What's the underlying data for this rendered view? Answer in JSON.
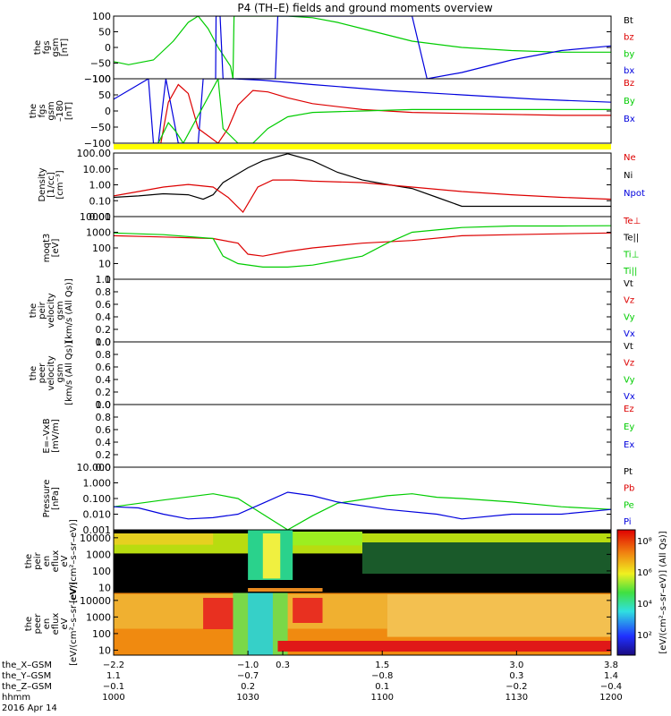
{
  "title": "P4 (TH–E) fields and ground moments overview",
  "footer": {
    "date": "2016 Apr 14",
    "rows": [
      {
        "name": "the_X–GSM",
        "values": [
          "−2.2",
          "−1.0",
          "0.3",
          "1.5",
          "3.0",
          "3.8"
        ]
      },
      {
        "name": "the_Y–GSM",
        "values": [
          "1.1",
          "−0.7",
          "",
          "−0.8",
          "0.3",
          "1.4"
        ]
      },
      {
        "name": "the_Z–GSM",
        "values": [
          "−0.1",
          "0.2",
          "",
          "0.1",
          "−0.2",
          "−0.4"
        ]
      },
      {
        "name": "hhmm",
        "values": [
          "1000",
          "1030",
          "",
          "1100",
          "1130",
          "1200"
        ]
      }
    ]
  },
  "colorbar": {
    "ticks": [
      "10⁸",
      "10⁶",
      "10⁴",
      "10²"
    ],
    "label": "[eV/(cm²–s–sr–eV)] (All Qs)]"
  },
  "chart_data": [
    {
      "type": "line",
      "ylabel_lines": [
        "the",
        "fgs",
        "gsm",
        "[nT]"
      ],
      "y_ticks": [
        "100",
        "50",
        "0",
        "−50",
        "−100"
      ],
      "ylim": [
        -100,
        100
      ],
      "legend": [
        {
          "name": "Bt",
          "color": "#000000"
        },
        {
          "name": "bz",
          "color": "#dd0000"
        },
        {
          "name": "by",
          "color": "#00cc00"
        },
        {
          "name": "bx",
          "color": "#0000dd"
        }
      ],
      "series": [
        {
          "name": "by",
          "color": "#00cc00",
          "x": [
            0,
            3,
            8,
            12,
            15,
            17,
            19,
            21,
            23.5,
            24,
            24.2,
            30,
            35,
            40,
            45,
            50,
            55,
            60,
            70,
            80,
            90,
            100
          ],
          "y": [
            -45,
            -55,
            -40,
            20,
            80,
            100,
            60,
            0,
            -60,
            -100,
            100,
            100,
            100,
            95,
            80,
            60,
            40,
            20,
            0,
            -10,
            -15,
            -15
          ]
        },
        {
          "name": "bx",
          "color": "#0000dd",
          "x": [
            20.5,
            20.6,
            21.4,
            22,
            30,
            32.5,
            33,
            45,
            60,
            63,
            70,
            80,
            90,
            100
          ],
          "y": [
            -100,
            100,
            100,
            -100,
            -100,
            -100,
            100,
            100,
            100,
            -100,
            -80,
            -40,
            -10,
            5
          ]
        }
      ]
    },
    {
      "type": "line",
      "ylabel_lines": [
        "the",
        "fgs",
        "gsm",
        "–180",
        "[nT]"
      ],
      "y_ticks": [
        "100",
        "50",
        "0",
        "−50",
        "−100"
      ],
      "ylim": [
        -110,
        110
      ],
      "legend": [
        {
          "name": "Bz",
          "color": "#dd0000"
        },
        {
          "name": "By",
          "color": "#00cc00"
        },
        {
          "name": "Bx",
          "color": "#0000dd"
        }
      ],
      "band_color": "#ffff00",
      "series": [
        {
          "name": "Bx",
          "color": "#0000dd",
          "x": [
            0,
            7,
            8,
            9,
            10.5,
            13,
            17,
            18,
            24,
            30,
            40,
            55,
            70,
            85,
            100
          ],
          "y": [
            40,
            110,
            -110,
            -110,
            110,
            -110,
            -110,
            110,
            110,
            105,
            90,
            70,
            55,
            40,
            30
          ]
        },
        {
          "name": "Bz",
          "color": "#dd0000",
          "x": [
            9.5,
            11,
            13,
            15,
            17,
            21,
            23,
            25,
            28,
            31,
            35,
            40,
            50,
            60,
            75,
            90,
            100
          ],
          "y": [
            -110,
            30,
            90,
            60,
            -60,
            -110,
            -60,
            20,
            70,
            65,
            45,
            25,
            5,
            -5,
            -10,
            -15,
            -15
          ]
        },
        {
          "name": "By",
          "color": "#00cc00",
          "x": [
            9,
            11,
            12.5,
            14,
            21,
            22,
            25,
            28,
            31,
            35,
            40,
            50,
            60,
            75,
            90,
            100
          ],
          "y": [
            -110,
            -40,
            -70,
            -110,
            110,
            -60,
            -110,
            -110,
            -60,
            -20,
            -5,
            0,
            5,
            5,
            5,
            5
          ]
        }
      ]
    },
    {
      "type": "line",
      "ylabel_lines": [
        "Density",
        "[1/cc]",
        "[cm⁻³]"
      ],
      "y_ticks": [
        "100.00",
        "10.00",
        "1.00",
        "0.10",
        "0.01"
      ],
      "y_log": true,
      "ylim": [
        0.01,
        200
      ],
      "legend": [
        {
          "name": "Ne",
          "color": "#dd0000"
        },
        {
          "name": "Ni",
          "color": "#000000"
        },
        {
          "name": "Npot",
          "color": "#0000dd"
        }
      ],
      "series": [
        {
          "name": "Ni",
          "color": "#000000",
          "x": [
            0,
            5,
            10,
            15,
            18,
            20,
            22,
            27,
            30,
            35,
            40,
            45,
            50,
            55,
            60,
            65,
            70,
            80,
            90,
            100
          ],
          "y": [
            0.2,
            0.25,
            0.35,
            0.3,
            0.15,
            0.3,
            2,
            20,
            60,
            180,
            60,
            10,
            3,
            1.5,
            0.8,
            0.2,
            0.05,
            0.05,
            0.05,
            0.05
          ]
        },
        {
          "name": "Ne",
          "color": "#dd0000",
          "x": [
            0,
            5,
            10,
            15,
            20,
            23,
            26,
            29,
            32,
            36,
            40,
            50,
            60,
            70,
            80,
            90,
            100
          ],
          "y": [
            0.25,
            0.5,
            1,
            1.5,
            1,
            0.2,
            0.02,
            1,
            3,
            3,
            2.5,
            2,
            1,
            0.5,
            0.3,
            0.2,
            0.15
          ]
        }
      ]
    },
    {
      "type": "line",
      "ylabel_lines": [
        "moqt3",
        "[eV]"
      ],
      "y_ticks": [
        "10000",
        "1000",
        "100",
        "10",
        "1"
      ],
      "y_log": true,
      "ylim": [
        1,
        10000
      ],
      "legend": [
        {
          "name": "Te⊥",
          "color": "#dd0000"
        },
        {
          "name": "Te||",
          "color": "#000000"
        },
        {
          "name": "Ti⊥",
          "color": "#00cc00"
        },
        {
          "name": "Ti||",
          "color": "#00cc00"
        }
      ],
      "series": [
        {
          "name": "Te⊥",
          "color": "#dd0000",
          "x": [
            0,
            10,
            20,
            25,
            27,
            30,
            35,
            40,
            50,
            60,
            70,
            80,
            90,
            100
          ],
          "y": [
            600,
            500,
            400,
            200,
            40,
            30,
            60,
            100,
            200,
            300,
            600,
            700,
            800,
            900
          ]
        },
        {
          "name": "Ti⊥",
          "color": "#00cc00",
          "x": [
            0,
            10,
            20,
            22,
            25,
            30,
            35,
            40,
            50,
            55,
            60,
            70,
            80,
            90,
            100
          ],
          "y": [
            900,
            700,
            400,
            30,
            10,
            6,
            6,
            8,
            30,
            200,
            1000,
            2000,
            2500,
            2500,
            2600
          ]
        }
      ]
    },
    {
      "type": "line",
      "ylabel_lines": [
        "the",
        "peir",
        "velocity",
        "gsm",
        "[km/s (All Qs)]"
      ],
      "y_ticks": [
        "1.0",
        "0.8",
        "0.6",
        "0.4",
        "0.2",
        "0.0"
      ],
      "ylim": [
        0,
        1
      ],
      "legend": [
        {
          "name": "Vt",
          "color": "#000000"
        },
        {
          "name": "Vz",
          "color": "#dd0000"
        },
        {
          "name": "Vy",
          "color": "#00cc00"
        },
        {
          "name": "Vx",
          "color": "#0000dd"
        }
      ],
      "series": []
    },
    {
      "type": "line",
      "ylabel_lines": [
        "the",
        "peer",
        "velocity",
        "gsm",
        "[km/s (All Qs)]"
      ],
      "y_ticks": [
        "1.0",
        "0.8",
        "0.6",
        "0.4",
        "0.2",
        "0.0"
      ],
      "ylim": [
        0,
        1
      ],
      "legend": [
        {
          "name": "Vt",
          "color": "#000000"
        },
        {
          "name": "Vz",
          "color": "#dd0000"
        },
        {
          "name": "Vy",
          "color": "#00cc00"
        },
        {
          "name": "Vx",
          "color": "#0000dd"
        }
      ],
      "series": []
    },
    {
      "type": "line",
      "ylabel_lines": [
        "E=–VxB",
        "[mV/m]"
      ],
      "y_ticks": [
        "1.0",
        "0.8",
        "0.6",
        "0.4",
        "0.2",
        "0.0"
      ],
      "ylim": [
        0,
        1
      ],
      "legend": [
        {
          "name": "Ez",
          "color": "#dd0000"
        },
        {
          "name": "Ey",
          "color": "#00cc00"
        },
        {
          "name": "Ex",
          "color": "#0000dd"
        }
      ],
      "series": []
    },
    {
      "type": "line",
      "ylabel_lines": [
        "Pressure",
        "[nPa]"
      ],
      "y_ticks": [
        "10.000",
        "1.000",
        "0.100",
        "0.010",
        "0.001"
      ],
      "y_log": true,
      "ylim": [
        0.001,
        10
      ],
      "legend": [
        {
          "name": "Pt",
          "color": "#000000"
        },
        {
          "name": "Pb",
          "color": "#dd0000"
        },
        {
          "name": "Pe",
          "color": "#00cc00"
        },
        {
          "name": "Pi",
          "color": "#0000dd"
        }
      ],
      "series": [
        {
          "name": "Pe",
          "color": "#00cc00",
          "x": [
            0,
            10,
            20,
            25,
            30,
            35,
            40,
            45,
            55,
            60,
            65,
            70,
            80,
            90,
            100
          ],
          "y": [
            0.03,
            0.08,
            0.2,
            0.1,
            0.01,
            0.001,
            0.008,
            0.05,
            0.15,
            0.2,
            0.12,
            0.1,
            0.06,
            0.03,
            0.02
          ]
        },
        {
          "name": "Pi",
          "color": "#0000dd",
          "x": [
            0,
            5,
            10,
            15,
            20,
            25,
            30,
            35,
            40,
            45,
            55,
            65,
            70,
            80,
            90,
            100
          ],
          "y": [
            0.03,
            0.025,
            0.01,
            0.005,
            0.006,
            0.01,
            0.05,
            0.25,
            0.15,
            0.06,
            0.02,
            0.01,
            0.005,
            0.01,
            0.01,
            0.02
          ]
        }
      ]
    },
    {
      "type": "heatmap",
      "ylabel_lines": [
        "the",
        "peir",
        "en",
        "eflux",
        "eV",
        "[eV/(cm²–s–sr–eV)]"
      ],
      "y_ticks": [
        "10000",
        "1000",
        "100",
        "10"
      ],
      "y_log": true,
      "ylim": [
        5,
        30000
      ]
    },
    {
      "type": "heatmap",
      "ylabel_lines": [
        "the",
        "peer",
        "en",
        "eflux",
        "eV",
        "[eV/(cm²–s–sr–eV)]"
      ],
      "y_ticks": [
        "10000",
        "1000",
        "100",
        "10"
      ],
      "y_log": true,
      "ylim": [
        5,
        30000
      ]
    }
  ]
}
